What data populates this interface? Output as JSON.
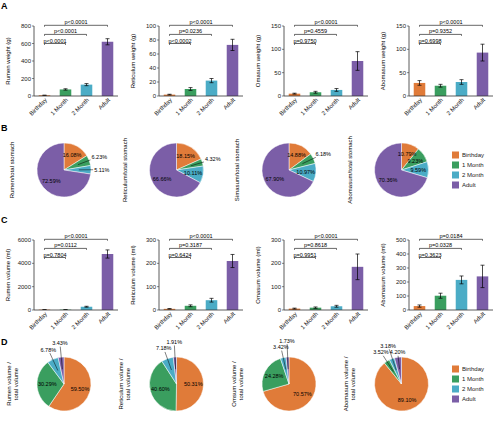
{
  "chart_data": [
    {
      "type": "bar",
      "ylabel": "Rumen weight (g)",
      "categories": [
        "Birthday",
        "1 Month",
        "2 Month",
        "Adult"
      ],
      "values": [
        8,
        75,
        130,
        620
      ],
      "errors": [
        2,
        8,
        12,
        35
      ],
      "colors": [
        "#E07B39",
        "#3A9E5F",
        "#4BACC6",
        "#7B5EA7"
      ],
      "ylim": [
        0,
        800
      ],
      "yticks": [
        0,
        200,
        400,
        600,
        800
      ],
      "annotations": [
        {
          "text": "A"
        },
        {
          "text": "p<0.0001",
          "from": "Birthday",
          "to": "1 Month"
        },
        {
          "text": "p<0.0001",
          "from": "Birthday",
          "to": "2 Month"
        },
        {
          "text": "p<0.0001",
          "from": "Birthday",
          "to": "Adult"
        }
      ]
    },
    {
      "type": "bar",
      "ylabel": "Reticulum weight (g)",
      "categories": [
        "Birthday",
        "1 Month",
        "2 Month",
        "Adult"
      ],
      "values": [
        2,
        10,
        22,
        73
      ],
      "errors": [
        0.5,
        2,
        3,
        8
      ],
      "colors": [
        "#E07B39",
        "#3A9E5F",
        "#4BACC6",
        "#7B5EA7"
      ],
      "ylim": [
        0,
        100
      ],
      "yticks": [
        0,
        20,
        40,
        60,
        80,
        100
      ],
      "annotations": [
        {
          "text": "p<0.0002",
          "from": "Birthday",
          "to": "1 Month"
        },
        {
          "text": "p=0.0236",
          "from": "Birthday",
          "to": "2 Month"
        },
        {
          "text": "p<0.0001",
          "from": "Birthday",
          "to": "Adult"
        }
      ]
    },
    {
      "type": "bar",
      "ylabel": "Omasum weight (g)",
      "categories": [
        "Birthday",
        "1 Month",
        "2 Month",
        "Adult"
      ],
      "values": [
        5,
        8,
        13,
        75
      ],
      "errors": [
        1,
        2,
        3,
        20
      ],
      "colors": [
        "#E07B39",
        "#3A9E5F",
        "#4BACC6",
        "#7B5EA7"
      ],
      "ylim": [
        0,
        150
      ],
      "yticks": [
        0,
        50,
        100,
        150
      ],
      "annotations": [
        {
          "text": "p=0.9750",
          "from": "Birthday",
          "to": "1 Month"
        },
        {
          "text": "p=0.4559",
          "from": "Birthday",
          "to": "2 Month"
        },
        {
          "text": "p<0.0001",
          "from": "Birthday",
          "to": "Adult"
        }
      ]
    },
    {
      "type": "bar",
      "ylabel": "Abomasum weight (g)",
      "categories": [
        "Birthday",
        "1 Month",
        "2 Month",
        "Adult"
      ],
      "values": [
        28,
        22,
        30,
        93
      ],
      "errors": [
        5,
        3,
        5,
        18
      ],
      "colors": [
        "#E07B39",
        "#3A9E5F",
        "#4BACC6",
        "#7B5EA7"
      ],
      "ylim": [
        0,
        150
      ],
      "yticks": [
        0,
        50,
        100,
        150
      ],
      "annotations": [
        {
          "text": "p=0.6998",
          "from": "Birthday",
          "to": "1 Month"
        },
        {
          "text": "p=0.9352",
          "from": "Birthday",
          "to": "2 Month"
        },
        {
          "text": "p<0.0001",
          "from": "Birthday",
          "to": "Adult"
        }
      ]
    },
    {
      "type": "pie",
      "title": "Rumen/total stomach",
      "values": [
        16.08,
        6.23,
        5.11,
        72.59
      ],
      "value_labels": [
        "16.08%",
        "6.23%",
        "5.11%",
        "72.59%"
      ],
      "colors": [
        "#E07B39",
        "#3A9E5F",
        "#4BACC6",
        "#7B5EA7"
      ],
      "data_labels": true,
      "annotations": [
        {
          "text": "B"
        }
      ]
    },
    {
      "type": "pie",
      "title": "Reticulum/total stomach",
      "values": [
        18.15,
        4.32,
        10.11,
        66.66
      ],
      "value_labels": [
        "18.15%",
        "4.32%",
        "10.11%",
        "66.66%"
      ],
      "colors": [
        "#E07B39",
        "#3A9E5F",
        "#4BACC6",
        "#7B5EA7"
      ],
      "data_labels": true
    },
    {
      "type": "pie",
      "title": "Simasum/total stomach",
      "values": [
        14.88,
        6.18,
        10.97,
        67.9
      ],
      "value_labels": [
        "14.88%",
        "6.18%",
        "10.97%",
        "67.90%"
      ],
      "colors": [
        "#E07B39",
        "#3A9E5F",
        "#4BACC6",
        "#7B5EA7"
      ],
      "data_labels": true
    },
    {
      "type": "pie",
      "title": "Abomasum/total stomach",
      "values": [
        10.79,
        9.23,
        9.59,
        70.36
      ],
      "value_labels": [
        "10.79%",
        "9.23%",
        "9.59%",
        "70.36%"
      ],
      "colors": [
        "#E07B39",
        "#3A9E5F",
        "#4BACC6",
        "#7B5EA7"
      ],
      "data_labels": true,
      "categories": [
        "Birthday",
        "1 Month",
        "2 Month",
        "Adult"
      ],
      "legend": "right"
    },
    {
      "type": "bar",
      "ylabel": "Rumen volume (ml)",
      "categories": [
        "Birthday",
        "1 Month",
        "2 Month",
        "Adult"
      ],
      "values": [
        30,
        30,
        280,
        4800
      ],
      "errors": [
        8,
        8,
        40,
        350
      ],
      "colors": [
        "#E07B39",
        "#3A9E5F",
        "#4BACC6",
        "#7B5EA7"
      ],
      "ylim": [
        0,
        6000
      ],
      "yticks": [
        0,
        2000,
        4000,
        6000
      ],
      "annotations": [
        {
          "text": "C"
        },
        {
          "text": "p=0.7804",
          "from": "Birthday",
          "to": "1 Month"
        },
        {
          "text": "p=0.0112",
          "from": "Birthday",
          "to": "2 Month"
        },
        {
          "text": "p<0.0001",
          "from": "Birthday",
          "to": "Adult"
        }
      ]
    },
    {
      "type": "bar",
      "ylabel": "Reticulum volume (ml)",
      "categories": [
        "Birthday",
        "1 Month",
        "2 Month",
        "Adult"
      ],
      "values": [
        5,
        18,
        42,
        210
      ],
      "errors": [
        1,
        4,
        8,
        28
      ],
      "colors": [
        "#E07B39",
        "#3A9E5F",
        "#4BACC6",
        "#7B5EA7"
      ],
      "ylim": [
        0,
        300
      ],
      "yticks": [
        0,
        100,
        200,
        300
      ],
      "annotations": [
        {
          "text": "p=0.6424",
          "from": "Birthday",
          "to": "1 Month"
        },
        {
          "text": "p=0.3187",
          "from": "Birthday",
          "to": "2 Month"
        },
        {
          "text": "p<0.0001",
          "from": "Birthday",
          "to": "Adult"
        }
      ]
    },
    {
      "type": "bar",
      "ylabel": "Omasum volume (ml)",
      "categories": [
        "Birthday",
        "1 Month",
        "2 Month",
        "Adult"
      ],
      "values": [
        6,
        10,
        16,
        185
      ],
      "errors": [
        2,
        3,
        4,
        55
      ],
      "colors": [
        "#E07B39",
        "#3A9E5F",
        "#4BACC6",
        "#7B5EA7"
      ],
      "ylim": [
        0,
        300
      ],
      "yticks": [
        0,
        100,
        200,
        300
      ],
      "annotations": [
        {
          "text": "p=0.9951",
          "from": "Birthday",
          "to": "1 Month"
        },
        {
          "text": "p=0.8618",
          "from": "Birthday",
          "to": "2 Month"
        },
        {
          "text": "p<0.0001",
          "from": "Birthday",
          "to": "Adult"
        }
      ]
    },
    {
      "type": "bar",
      "ylabel": "Abomasum volume (ml)",
      "categories": [
        "Birthday",
        "1 Month",
        "2 Month",
        "Adult"
      ],
      "values": [
        28,
        102,
        215,
        240
      ],
      "errors": [
        8,
        18,
        28,
        80
      ],
      "colors": [
        "#E07B39",
        "#3A9E5F",
        "#4BACC6",
        "#7B5EA7"
      ],
      "ylim": [
        0,
        500
      ],
      "yticks": [
        0,
        100,
        200,
        300,
        400,
        500
      ],
      "annotations": [
        {
          "text": "p=0.3623",
          "from": "Birthday",
          "to": "1 Month"
        },
        {
          "text": "p=0.0328",
          "from": "Birthday",
          "to": "2 Month"
        },
        {
          "text": "p=0.0184",
          "from": "Birthday",
          "to": "Adult"
        }
      ]
    },
    {
      "type": "pie",
      "title": "Rumen volume /\ntotal volume",
      "values": [
        59.5,
        30.29,
        6.78,
        3.43
      ],
      "value_labels": [
        "59.50%",
        "30.29%",
        "6.78%",
        "3.43%"
      ],
      "colors": [
        "#E07B39",
        "#3A9E5F",
        "#4BACC6",
        "#7B5EA7"
      ],
      "data_labels": true,
      "annotations": [
        {
          "text": "D"
        }
      ]
    },
    {
      "type": "pie",
      "title": "Reticulum volume /\ntotal volume",
      "values": [
        50.31,
        40.6,
        7.18,
        1.91
      ],
      "value_labels": [
        "50.31%",
        "40.60%",
        "7.18%",
        "1.91%"
      ],
      "colors": [
        "#E07B39",
        "#3A9E5F",
        "#4BACC6",
        "#7B5EA7"
      ],
      "data_labels": true
    },
    {
      "type": "pie",
      "title": "Omsum volume /\ntotal volume",
      "values": [
        70.57,
        24.28,
        3.42,
        1.73
      ],
      "value_labels": [
        "70.57%",
        "24.28%",
        "3.42%",
        "1.73%"
      ],
      "colors": [
        "#E07B39",
        "#3A9E5F",
        "#4BACC6",
        "#7B5EA7"
      ],
      "data_labels": true
    },
    {
      "type": "pie",
      "title": "Abomasum volume /\ntotal volume",
      "values": [
        89.1,
        3.52,
        3.18,
        4.2
      ],
      "value_labels": [
        "89.10%",
        "3.52%",
        "3.18%",
        "4.20%"
      ],
      "colors": [
        "#E07B39",
        "#3A9E5F",
        "#4BACC6",
        "#7B5EA7"
      ],
      "data_labels": true,
      "categories": [
        "Birthday",
        "1 Month",
        "2 Month",
        "Adult"
      ],
      "legend": "right"
    }
  ]
}
